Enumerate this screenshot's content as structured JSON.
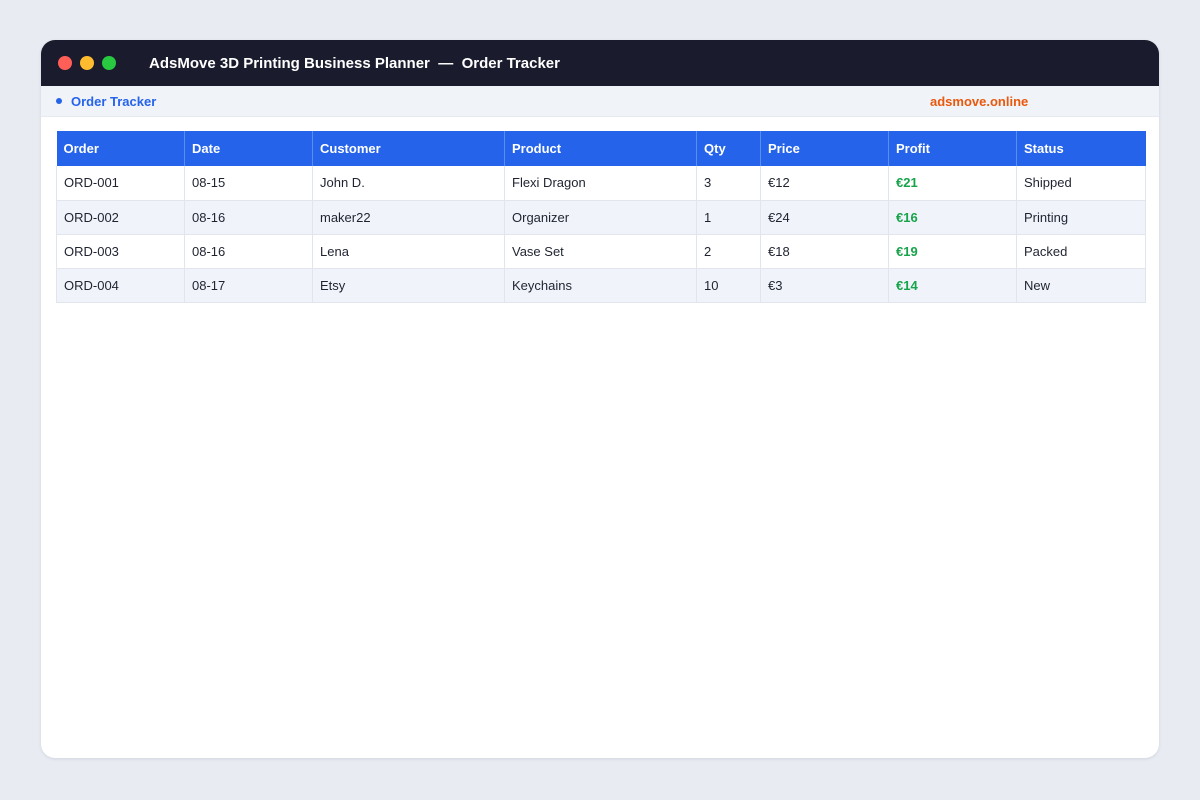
{
  "window": {
    "title": "AdsMove 3D Printing Business Planner  —  Order Tracker"
  },
  "subbar": {
    "breadcrumb": "Order Tracker",
    "brand": "adsmove.online"
  },
  "colors": {
    "titlebar": "#1a1c2e",
    "accent": "#2563eb",
    "brand": "#ea580c",
    "profit": "#16a34a"
  },
  "table": {
    "headers": [
      "Order",
      "Date",
      "Customer",
      "Product",
      "Qty",
      "Price",
      "Profit",
      "Status"
    ],
    "rows": [
      [
        "ORD-001",
        "08-15",
        "John D.",
        "Flexi Dragon",
        "3",
        "€12",
        "€21",
        "Shipped"
      ],
      [
        "ORD-002",
        "08-16",
        "maker22",
        "Organizer",
        "1",
        "€24",
        "€16",
        "Printing"
      ],
      [
        "ORD-003",
        "08-16",
        "Lena",
        "Vase Set",
        "2",
        "€18",
        "€19",
        "Packed"
      ],
      [
        "ORD-004",
        "08-17",
        "Etsy",
        "Keychains",
        "10",
        "€3",
        "€14",
        "New"
      ]
    ]
  }
}
